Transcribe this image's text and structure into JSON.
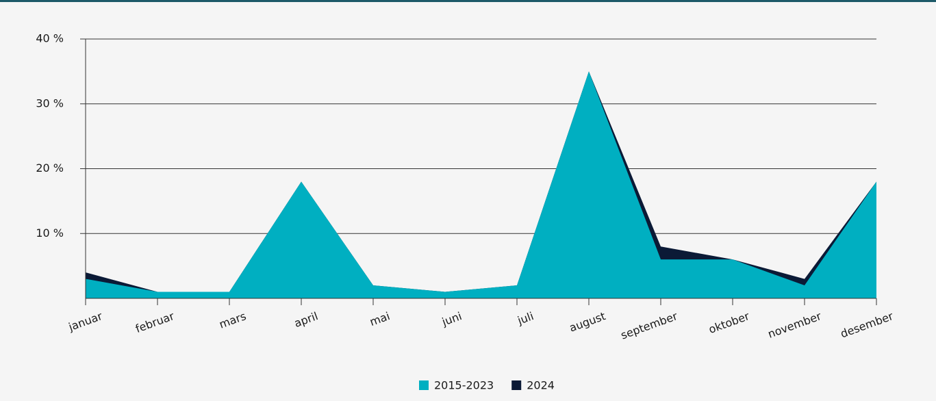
{
  "chart_data": {
    "type": "area",
    "categories": [
      "januar",
      "februar",
      "mars",
      "april",
      "mai",
      "juni",
      "juli",
      "august",
      "september",
      "oktober",
      "november",
      "desember"
    ],
    "series": [
      {
        "name": "2015-2023",
        "color": "#00afc1",
        "values": [
          3,
          1,
          1,
          18,
          2,
          1,
          2,
          35,
          6,
          6,
          2,
          18
        ]
      },
      {
        "name": "2024",
        "color": "#0b1a36",
        "values": [
          4,
          1,
          1,
          18,
          2,
          1,
          2,
          35,
          8,
          6,
          3,
          18
        ]
      }
    ],
    "ylim": [
      0,
      40
    ],
    "yticks": [
      {
        "value": 10,
        "label": "10 %"
      },
      {
        "value": 20,
        "label": "20 %"
      },
      {
        "value": 30,
        "label": "30 %"
      },
      {
        "value": 40,
        "label": "40 %"
      }
    ],
    "grid": true,
    "legend": "bottom"
  }
}
